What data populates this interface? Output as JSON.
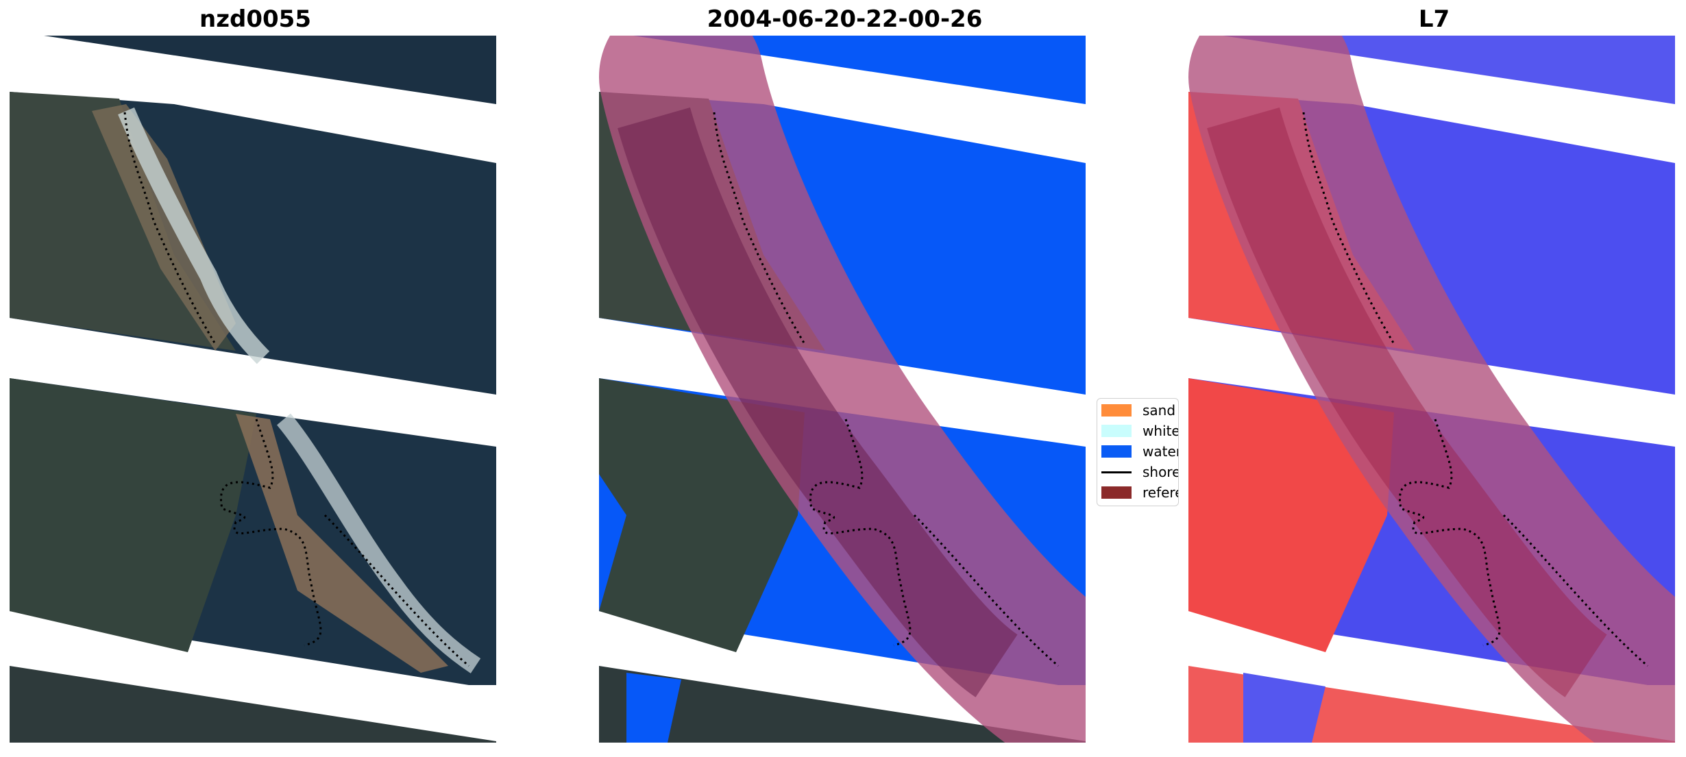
{
  "panels": [
    {
      "title": "nzd0055"
    },
    {
      "title": "2004-06-20-22-00-26"
    },
    {
      "title": "L7"
    }
  ],
  "legend": {
    "items": [
      {
        "label": "sand",
        "color": "#ff8c3a"
      },
      {
        "label": "whitewater",
        "color": "#c9fdfd"
      },
      {
        "label": "water",
        "color": "#0a5cf5"
      },
      {
        "label": "shoreline",
        "color": "#000000"
      },
      {
        "label": "reference shoreline",
        "color": "#8b2a2a"
      }
    ]
  },
  "colors": {
    "water_class": "#0658f8",
    "reference_buffer": "#b2527e",
    "reference_buffer_dark": "#6b1f4c",
    "water_index_positive": "#3a3ce8",
    "water_index_negative": "#f03a3a",
    "rgb_water": "#1d3447",
    "rgb_land": "#3a463e"
  }
}
